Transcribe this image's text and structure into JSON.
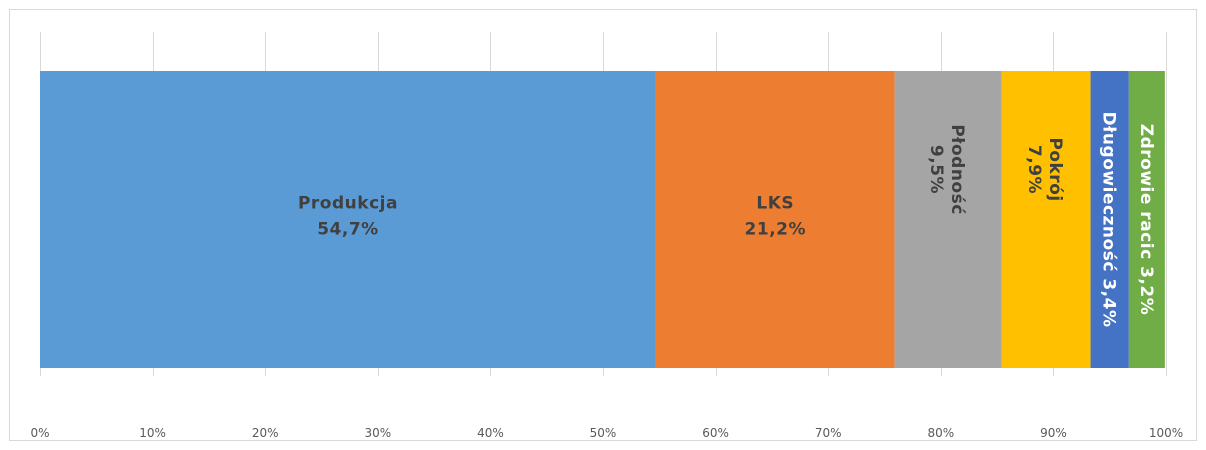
{
  "chart_data": {
    "type": "bar",
    "orientation": "horizontal",
    "stacked": "100%",
    "title": "",
    "xlabel": "",
    "ylabel": "",
    "xlim": [
      0,
      100
    ],
    "grid": true,
    "legend": "none",
    "ticks": [
      "0%",
      "10%",
      "20%",
      "30%",
      "40%",
      "50%",
      "60%",
      "70%",
      "80%",
      "90%",
      "100%"
    ],
    "series": [
      {
        "name": "Produkcja",
        "value": 54.7,
        "label": "54,7%",
        "color": "#5b9bd5",
        "label_color": "#404040",
        "label_style": "two-line"
      },
      {
        "name": "LKS",
        "value": 21.2,
        "label": "21,2%",
        "color": "#ed7d31",
        "label_color": "#404040",
        "label_style": "two-line"
      },
      {
        "name": "Płodność",
        "value": 9.5,
        "label": "9,5%",
        "color": "#a5a5a5",
        "label_color": "#404040",
        "label_style": "two-line-rotated"
      },
      {
        "name": "Pokrój",
        "value": 7.9,
        "label": "7,9%",
        "color": "#ffc000",
        "label_color": "#404040",
        "label_style": "two-line-rotated"
      },
      {
        "name": "Długowieczność",
        "value": 3.4,
        "label": "3,4%",
        "color": "#4472c4",
        "label_color": "#ffffff",
        "label_style": "one-line-rotated"
      },
      {
        "name": "Zdrowie racic",
        "value": 3.2,
        "label": "3,2%",
        "color": "#70ad47",
        "label_color": "#ffffff",
        "label_style": "one-line-rotated"
      }
    ]
  }
}
